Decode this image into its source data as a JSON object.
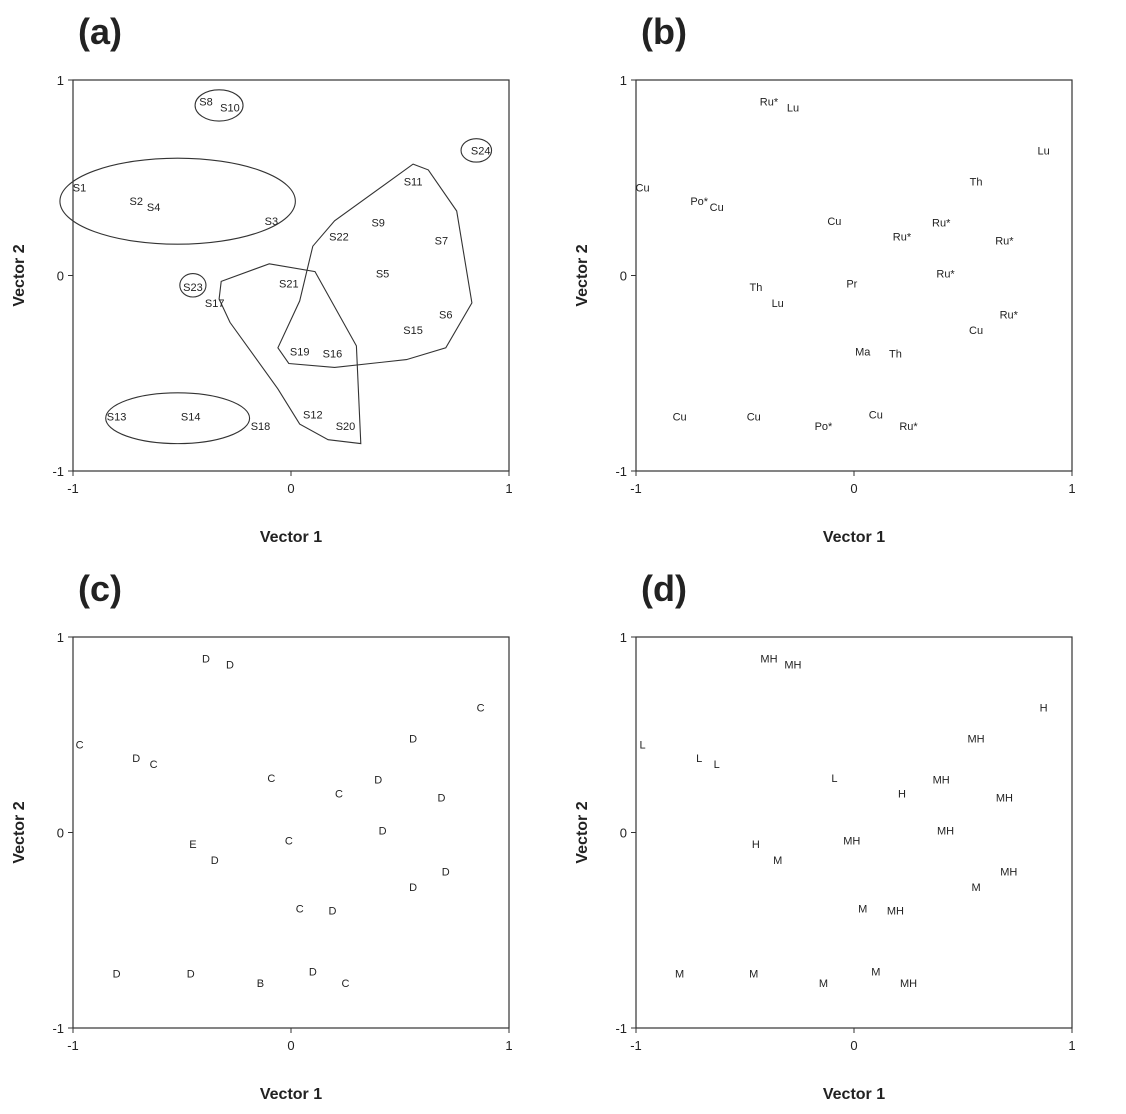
{
  "chart_data": [
    {
      "type": "scatter",
      "panel_label": "(a)",
      "xlabel": "Vector 1",
      "ylabel": "Vector 2",
      "xlim": [
        -1,
        1
      ],
      "ylim": [
        -1,
        1
      ],
      "xticks": [
        "-1",
        "0",
        "1"
      ],
      "yticks": [
        "-1",
        "0",
        "1"
      ],
      "grid": false,
      "points": [
        {
          "label": "S8",
          "x": -0.39,
          "y": 0.89
        },
        {
          "label": "S10",
          "x": -0.28,
          "y": 0.86
        },
        {
          "label": "S24",
          "x": 0.87,
          "y": 0.64
        },
        {
          "label": "S1",
          "x": -0.97,
          "y": 0.45
        },
        {
          "label": "S2",
          "x": -0.71,
          "y": 0.38
        },
        {
          "label": "S4",
          "x": -0.63,
          "y": 0.35
        },
        {
          "label": "S3",
          "x": -0.09,
          "y": 0.28
        },
        {
          "label": "S11",
          "x": 0.56,
          "y": 0.48
        },
        {
          "label": "S9",
          "x": 0.4,
          "y": 0.27
        },
        {
          "label": "S22",
          "x": 0.22,
          "y": 0.2
        },
        {
          "label": "S7",
          "x": 0.69,
          "y": 0.18
        },
        {
          "label": "S5",
          "x": 0.42,
          "y": 0.01
        },
        {
          "label": "S23",
          "x": -0.45,
          "y": -0.06
        },
        {
          "label": "S21",
          "x": -0.01,
          "y": -0.04
        },
        {
          "label": "S17",
          "x": -0.35,
          "y": -0.14
        },
        {
          "label": "S6",
          "x": 0.71,
          "y": -0.2
        },
        {
          "label": "S15",
          "x": 0.56,
          "y": -0.28
        },
        {
          "label": "S19",
          "x": 0.04,
          "y": -0.39
        },
        {
          "label": "S16",
          "x": 0.19,
          "y": -0.4
        },
        {
          "label": "S13",
          "x": -0.8,
          "y": -0.72
        },
        {
          "label": "S14",
          "x": -0.46,
          "y": -0.72
        },
        {
          "label": "S12",
          "x": 0.1,
          "y": -0.71
        },
        {
          "label": "S18",
          "x": -0.14,
          "y": -0.77
        },
        {
          "label": "S20",
          "x": 0.25,
          "y": -0.77
        }
      ],
      "annotations": {
        "ellipses": [
          {
            "cx": -0.33,
            "cy": 0.87,
            "rx": 0.11,
            "ry": 0.08
          },
          {
            "cx": 0.85,
            "cy": 0.64,
            "rx": 0.07,
            "ry": 0.06
          },
          {
            "cx": -0.52,
            "cy": 0.38,
            "rx": 0.54,
            "ry": 0.22
          },
          {
            "cx": -0.45,
            "cy": -0.05,
            "rx": 0.06,
            "ry": 0.06
          },
          {
            "cx": -0.52,
            "cy": -0.73,
            "rx": 0.33,
            "ry": 0.13
          }
        ],
        "hulls": [
          [
            [
              0.56,
              0.57
            ],
            [
              0.63,
              0.54
            ],
            [
              0.76,
              0.33
            ],
            [
              0.83,
              -0.14
            ],
            [
              0.71,
              -0.37
            ],
            [
              0.53,
              -0.43
            ],
            [
              0.2,
              -0.47
            ],
            [
              -0.01,
              -0.45
            ],
            [
              -0.06,
              -0.37
            ],
            [
              0.04,
              -0.13
            ],
            [
              0.1,
              0.15
            ],
            [
              0.2,
              0.28
            ]
          ],
          [
            [
              -0.1,
              0.06
            ],
            [
              0.11,
              0.02
            ],
            [
              0.3,
              -0.36
            ],
            [
              0.32,
              -0.86
            ],
            [
              0.17,
              -0.84
            ],
            [
              0.04,
              -0.76
            ],
            [
              -0.06,
              -0.58
            ],
            [
              -0.28,
              -0.24
            ],
            [
              -0.33,
              -0.12
            ],
            [
              -0.32,
              -0.03
            ]
          ]
        ]
      }
    },
    {
      "type": "scatter",
      "panel_label": "(b)",
      "xlabel": "Vector 1",
      "ylabel": "Vector 2",
      "xlim": [
        -1,
        1
      ],
      "ylim": [
        -1,
        1
      ],
      "xticks": [
        "-1",
        "0",
        "1"
      ],
      "yticks": [
        "-1",
        "0",
        "1"
      ],
      "grid": false,
      "points": [
        {
          "label": "Ru*",
          "x": -0.39,
          "y": 0.89
        },
        {
          "label": "Lu",
          "x": -0.28,
          "y": 0.86
        },
        {
          "label": "Lu",
          "x": 0.87,
          "y": 0.64
        },
        {
          "label": "Cu",
          "x": -0.97,
          "y": 0.45
        },
        {
          "label": "Th",
          "x": 0.56,
          "y": 0.48
        },
        {
          "label": "Po*",
          "x": -0.71,
          "y": 0.38
        },
        {
          "label": "Cu",
          "x": -0.63,
          "y": 0.35
        },
        {
          "label": "Cu",
          "x": -0.09,
          "y": 0.28
        },
        {
          "label": "Ru*",
          "x": 0.4,
          "y": 0.27
        },
        {
          "label": "Ru*",
          "x": 0.22,
          "y": 0.2
        },
        {
          "label": "Ru*",
          "x": 0.69,
          "y": 0.18
        },
        {
          "label": "Ru*",
          "x": 0.42,
          "y": 0.01
        },
        {
          "label": "Th",
          "x": -0.45,
          "y": -0.06
        },
        {
          "label": "Pr",
          "x": -0.01,
          "y": -0.04
        },
        {
          "label": "Lu",
          "x": -0.35,
          "y": -0.14
        },
        {
          "label": "Ru*",
          "x": 0.71,
          "y": -0.2
        },
        {
          "label": "Cu",
          "x": 0.56,
          "y": -0.28
        },
        {
          "label": "Ma",
          "x": 0.04,
          "y": -0.39
        },
        {
          "label": "Th",
          "x": 0.19,
          "y": -0.4
        },
        {
          "label": "Cu",
          "x": -0.8,
          "y": -0.72
        },
        {
          "label": "Cu",
          "x": -0.46,
          "y": -0.72
        },
        {
          "label": "Cu",
          "x": 0.1,
          "y": -0.71
        },
        {
          "label": "Po*",
          "x": -0.14,
          "y": -0.77
        },
        {
          "label": "Ru*",
          "x": 0.25,
          "y": -0.77
        }
      ]
    },
    {
      "type": "scatter",
      "panel_label": "(c)",
      "xlabel": "Vector 1",
      "ylabel": "Vector 2",
      "xlim": [
        -1,
        1
      ],
      "ylim": [
        -1,
        1
      ],
      "xticks": [
        "-1",
        "0",
        "1"
      ],
      "yticks": [
        "-1",
        "0",
        "1"
      ],
      "grid": false,
      "points": [
        {
          "label": "D",
          "x": -0.39,
          "y": 0.89
        },
        {
          "label": "D",
          "x": -0.28,
          "y": 0.86
        },
        {
          "label": "C",
          "x": 0.87,
          "y": 0.64
        },
        {
          "label": "C",
          "x": -0.97,
          "y": 0.45
        },
        {
          "label": "D",
          "x": 0.56,
          "y": 0.48
        },
        {
          "label": "D",
          "x": -0.71,
          "y": 0.38
        },
        {
          "label": "C",
          "x": -0.63,
          "y": 0.35
        },
        {
          "label": "C",
          "x": -0.09,
          "y": 0.28
        },
        {
          "label": "D",
          "x": 0.4,
          "y": 0.27
        },
        {
          "label": "C",
          "x": 0.22,
          "y": 0.2
        },
        {
          "label": "D",
          "x": 0.69,
          "y": 0.18
        },
        {
          "label": "D",
          "x": 0.42,
          "y": 0.01
        },
        {
          "label": "E",
          "x": -0.45,
          "y": -0.06
        },
        {
          "label": "C",
          "x": -0.01,
          "y": -0.04
        },
        {
          "label": "D",
          "x": -0.35,
          "y": -0.14
        },
        {
          "label": "D",
          "x": 0.71,
          "y": -0.2
        },
        {
          "label": "D",
          "x": 0.56,
          "y": -0.28
        },
        {
          "label": "C",
          "x": 0.04,
          "y": -0.39
        },
        {
          "label": "D",
          "x": 0.19,
          "y": -0.4
        },
        {
          "label": "D",
          "x": -0.8,
          "y": -0.72
        },
        {
          "label": "D",
          "x": -0.46,
          "y": -0.72
        },
        {
          "label": "D",
          "x": 0.1,
          "y": -0.71
        },
        {
          "label": "B",
          "x": -0.14,
          "y": -0.77
        },
        {
          "label": "C",
          "x": 0.25,
          "y": -0.77
        }
      ]
    },
    {
      "type": "scatter",
      "panel_label": "(d)",
      "xlabel": "Vector 1",
      "ylabel": "Vector 2",
      "xlim": [
        -1,
        1
      ],
      "ylim": [
        -1,
        1
      ],
      "xticks": [
        "-1",
        "0",
        "1"
      ],
      "yticks": [
        "-1",
        "0",
        "1"
      ],
      "grid": false,
      "points": [
        {
          "label": "MH",
          "x": -0.39,
          "y": 0.89
        },
        {
          "label": "MH",
          "x": -0.28,
          "y": 0.86
        },
        {
          "label": "H",
          "x": 0.87,
          "y": 0.64
        },
        {
          "label": "L",
          "x": -0.97,
          "y": 0.45
        },
        {
          "label": "MH",
          "x": 0.56,
          "y": 0.48
        },
        {
          "label": "L",
          "x": -0.71,
          "y": 0.38
        },
        {
          "label": "L",
          "x": -0.63,
          "y": 0.35
        },
        {
          "label": "L",
          "x": -0.09,
          "y": 0.28
        },
        {
          "label": "MH",
          "x": 0.4,
          "y": 0.27
        },
        {
          "label": "H",
          "x": 0.22,
          "y": 0.2
        },
        {
          "label": "MH",
          "x": 0.69,
          "y": 0.18
        },
        {
          "label": "MH",
          "x": 0.42,
          "y": 0.01
        },
        {
          "label": "H",
          "x": -0.45,
          "y": -0.06
        },
        {
          "label": "MH",
          "x": -0.01,
          "y": -0.04
        },
        {
          "label": "M",
          "x": -0.35,
          "y": -0.14
        },
        {
          "label": "MH",
          "x": 0.71,
          "y": -0.2
        },
        {
          "label": "M",
          "x": 0.56,
          "y": -0.28
        },
        {
          "label": "M",
          "x": 0.04,
          "y": -0.39
        },
        {
          "label": "MH",
          "x": 0.19,
          "y": -0.4
        },
        {
          "label": "M",
          "x": -0.8,
          "y": -0.72
        },
        {
          "label": "M",
          "x": -0.46,
          "y": -0.72
        },
        {
          "label": "M",
          "x": 0.1,
          "y": -0.71
        },
        {
          "label": "M",
          "x": -0.14,
          "y": -0.77
        },
        {
          "label": "MH",
          "x": 0.25,
          "y": -0.77
        }
      ]
    }
  ]
}
